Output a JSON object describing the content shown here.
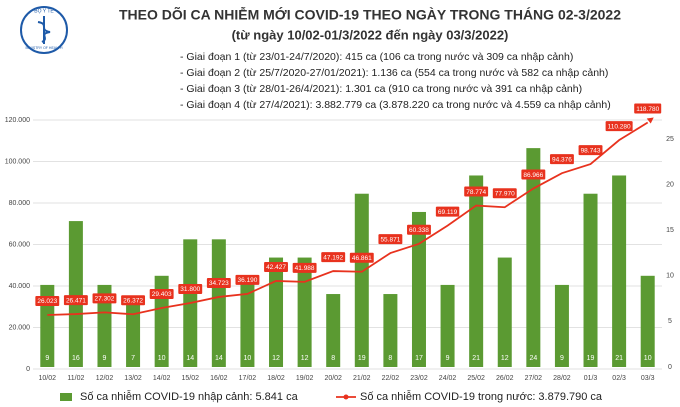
{
  "logo": {
    "top": "BỘ Y TẾ",
    "bottom": "MINISTRY OF HEALTH"
  },
  "chart_data": {
    "type": "combo",
    "title": "THEO DÕI CA NHIỄM MỚI COVID-19 THEO NGÀY TRONG THÁNG 02-3/2022",
    "subtitle": "(từ ngày 10/02-01/3/2022 đến ngày 03/3/2022)",
    "annotations": [
      "- Giai đoạn 1 (từ 23/01-24/7/2020): 415 ca (106 ca trong nước và 309 ca nhập cảnh)",
      "- Giai đoạn 2 (từ 25/7/2020-27/01/2021): 1.136 ca (554 ca trong nước và 582 ca nhập cảnh)",
      "- Giai đoạn 3 (từ 28/01-26/4/2021): 1.301 ca (910 ca trong nước và 391 ca nhập cảnh)",
      "- Giai đoạn 4 (từ 27/4/2021): 3.882.779 ca (3.878.220 ca trong nước và 4.559 ca nhập cảnh)"
    ],
    "categories": [
      "10/02",
      "11/02",
      "12/02",
      "13/02",
      "14/02",
      "15/02",
      "16/02",
      "17/02",
      "18/02",
      "19/02",
      "20/02",
      "21/02",
      "22/02",
      "23/02",
      "24/02",
      "25/02",
      "26/02",
      "27/02",
      "28/02",
      "01/3",
      "02/3",
      "03/3"
    ],
    "series": [
      {
        "name": "Số ca nhiễm COVID-19 nhập cảnh: 5.841 ca",
        "type": "bar",
        "axis": "y2",
        "color": "#5b9a32",
        "values": [
          9,
          16,
          9,
          7,
          10,
          14,
          14,
          10,
          12,
          12,
          8,
          19,
          8,
          17,
          9,
          21,
          12,
          24,
          9,
          19,
          21,
          10
        ]
      },
      {
        "name": "Số ca nhiễm COVID-19 trong nước: 3.879.790 ca",
        "type": "line",
        "color": "#e8321e",
        "values": [
          26023,
          26471,
          27302,
          26372,
          29403,
          31800,
          34723,
          36190,
          42427,
          41988,
          47192,
          46861,
          55871,
          60338,
          69119,
          78774,
          77970,
          86966,
          94376,
          98743,
          110280,
          118780
        ],
        "value_labels": [
          "26.023",
          "26.471",
          "27.302",
          "26.372",
          "29.403",
          "31.800",
          "34.723",
          "36.190",
          "42.427",
          "41.988",
          "47.192",
          "46.861",
          "55.871",
          "60.338",
          "69.119",
          "78.774",
          "77.970",
          "86.966",
          "94.376",
          "98.743",
          "110.280",
          "118.780"
        ]
      }
    ],
    "ylim": [
      0,
      120000
    ],
    "yticks": [
      0,
      {
        "value": 20000,
        "label": "20.000"
      },
      {
        "value": 40000,
        "label": "40.000"
      },
      {
        "value": 60000,
        "label": "60.000"
      },
      {
        "value": 80000,
        "label": "80.000"
      },
      {
        "value": 100000,
        "label": "100.000"
      },
      {
        "value": 120000,
        "label": "120.000"
      }
    ],
    "y2lim": [
      0,
      25
    ],
    "y2ticks": [
      0,
      5,
      10,
      15,
      20,
      25
    ],
    "grid": true
  }
}
